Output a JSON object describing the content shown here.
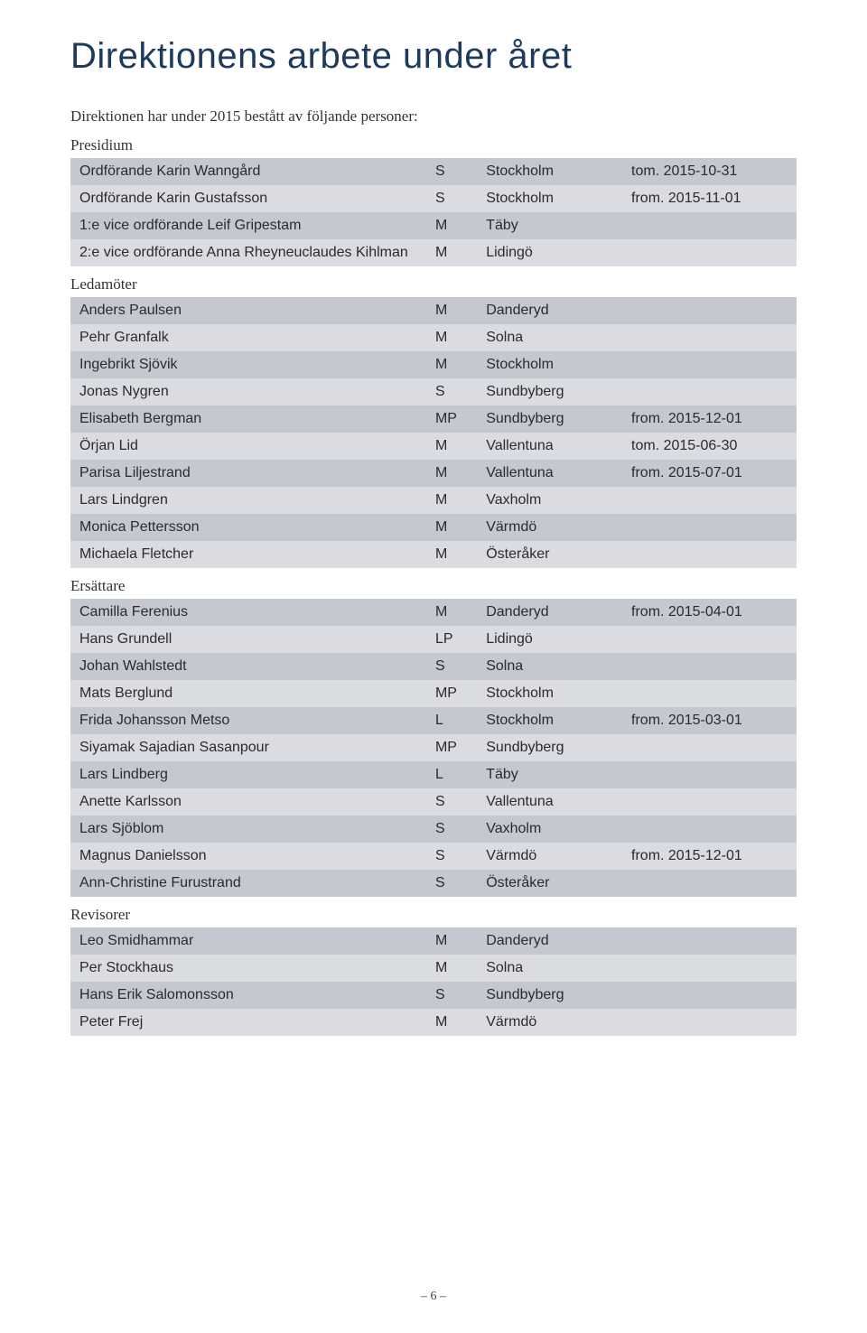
{
  "title": "Direktionens arbete under året",
  "intro": "Direktionen har under 2015 bestått av följande personer:",
  "row_colors": {
    "light": "#dbdce2",
    "dark": "#c5c7d1"
  },
  "sections": [
    {
      "label": "Presidium",
      "rows": [
        {
          "name": "Ordförande Karin Wanngård",
          "party": "S",
          "city": "Stockholm",
          "date": "tom. 2015-10-31"
        },
        {
          "name": "Ordförande Karin Gustafsson",
          "party": "S",
          "city": "Stockholm",
          "date": "from. 2015-11-01"
        },
        {
          "name": "1:e vice ordförande Leif Gripestam",
          "party": "M",
          "city": "Täby",
          "date": ""
        },
        {
          "name": "2:e vice ordförande Anna Rheyneuclaudes Kihlman",
          "party": "M",
          "city": "Lidingö",
          "date": ""
        }
      ]
    },
    {
      "label": "Ledamöter",
      "rows": [
        {
          "name": "Anders Paulsen",
          "party": "M",
          "city": "Danderyd",
          "date": ""
        },
        {
          "name": "Pehr Granfalk",
          "party": "M",
          "city": "Solna",
          "date": ""
        },
        {
          "name": "Ingebrikt Sjövik",
          "party": "M",
          "city": "Stockholm",
          "date": ""
        },
        {
          "name": "Jonas Nygren",
          "party": "S",
          "city": "Sundbyberg",
          "date": ""
        },
        {
          "name": "Elisabeth Bergman",
          "party": "MP",
          "city": "Sundbyberg",
          "date": "from. 2015-12-01"
        },
        {
          "name": "Örjan Lid",
          "party": "M",
          "city": "Vallentuna",
          "date": "tom. 2015-06-30"
        },
        {
          "name": "Parisa Liljestrand",
          "party": "M",
          "city": "Vallentuna",
          "date": "from. 2015-07-01"
        },
        {
          "name": "Lars Lindgren",
          "party": "M",
          "city": "Vaxholm",
          "date": ""
        },
        {
          "name": "Monica Pettersson",
          "party": "M",
          "city": "Värmdö",
          "date": ""
        },
        {
          "name": "Michaela Fletcher",
          "party": "M",
          "city": "Österåker",
          "date": ""
        }
      ]
    },
    {
      "label": "Ersättare",
      "rows": [
        {
          "name": "Camilla Ferenius",
          "party": "M",
          "city": "Danderyd",
          "date": "from. 2015-04-01"
        },
        {
          "name": "Hans Grundell",
          "party": "LP",
          "city": "Lidingö",
          "date": ""
        },
        {
          "name": "Johan Wahlstedt",
          "party": "S",
          "city": "Solna",
          "date": ""
        },
        {
          "name": "Mats Berglund",
          "party": "MP",
          "city": "Stockholm",
          "date": ""
        },
        {
          "name": "Frida Johansson Metso",
          "party": "L",
          "city": "Stockholm",
          "date": "from. 2015-03-01"
        },
        {
          "name": "Siyamak Sajadian Sasanpour",
          "party": "MP",
          "city": "Sundbyberg",
          "date": ""
        },
        {
          "name": "Lars Lindberg",
          "party": "L",
          "city": "Täby",
          "date": ""
        },
        {
          "name": "Anette Karlsson",
          "party": "S",
          "city": "Vallentuna",
          "date": ""
        },
        {
          "name": "Lars Sjöblom",
          "party": "S",
          "city": "Vaxholm",
          "date": ""
        },
        {
          "name": "Magnus Danielsson",
          "party": "S",
          "city": "Värmdö",
          "date": "from. 2015-12-01"
        },
        {
          "name": "Ann-Christine Furustrand",
          "party": "S",
          "city": "Österåker",
          "date": ""
        }
      ]
    },
    {
      "label": "Revisorer",
      "rows": [
        {
          "name": "Leo Smidhammar",
          "party": "M",
          "city": "Danderyd",
          "date": ""
        },
        {
          "name": "Per Stockhaus",
          "party": "M",
          "city": "Solna",
          "date": ""
        },
        {
          "name": "Hans Erik Salomonsson",
          "party": "S",
          "city": "Sundbyberg",
          "date": ""
        },
        {
          "name": "Peter Frej",
          "party": "M",
          "city": "Värmdö",
          "date": ""
        }
      ]
    }
  ],
  "page_number": "– 6 –"
}
